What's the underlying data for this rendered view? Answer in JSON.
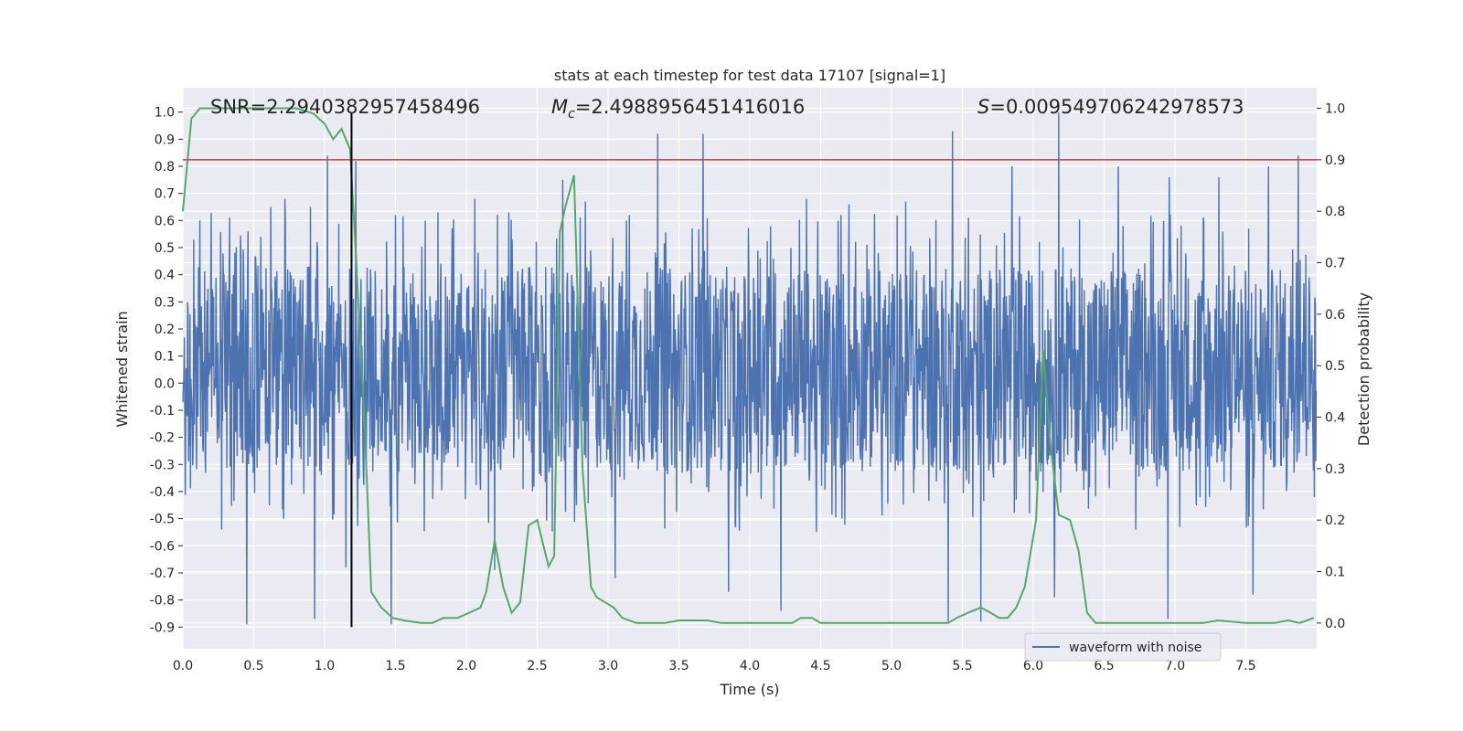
{
  "chart_data": {
    "type": "line",
    "title": "stats at each timestep for test data 17107 [signal=1]",
    "xlabel": "Time (s)",
    "ylabel": "Whitened strain",
    "ylabel_right": "Detection probability",
    "xlim": [
      0.0,
      8.0
    ],
    "ylim": [
      -0.98,
      1.09
    ],
    "ylim_right": [
      -0.05,
      1.04
    ],
    "x_ticks": [
      "0.0",
      "0.5",
      "1.0",
      "1.5",
      "2.0",
      "2.5",
      "3.0",
      "3.5",
      "4.0",
      "4.5",
      "5.0",
      "5.5",
      "6.0",
      "6.5",
      "7.0",
      "7.5"
    ],
    "y_ticks": [
      "1.0",
      "0.9",
      "0.8",
      "0.7",
      "0.6",
      "0.5",
      "0.4",
      "0.3",
      "0.2",
      "0.1",
      "0.0",
      "-0.1",
      "-0.2",
      "-0.3",
      "-0.4",
      "-0.5",
      "-0.6",
      "-0.7",
      "-0.8",
      "-0.9"
    ],
    "y_ticks_right": [
      "1.0",
      "0.9",
      "0.8",
      "0.7",
      "0.6",
      "0.5",
      "0.4",
      "0.3",
      "0.2",
      "0.1",
      "0.0"
    ],
    "grid": true,
    "legend": {
      "position": "lower-right",
      "entries": [
        "waveform with noise"
      ]
    },
    "annotations": {
      "snr": "SNR=2.2940382957458496",
      "mc_symbol": "M",
      "mc_sub": "c",
      "mc_value": "=2.4988956451416016",
      "s_symbol": "S",
      "s_value": "=0.009549706242978573"
    },
    "threshold": {
      "axis": "right",
      "value": 0.9,
      "color": "#c44e52"
    },
    "vertical_marker": {
      "x": 1.19,
      "y_from": -0.9,
      "y_to": 1.0,
      "color": "#000000"
    },
    "series": [
      {
        "name": "waveform with noise",
        "axis": "left",
        "color": "#4c72b0",
        "envelope_band": [
          -0.33,
          0.43
        ],
        "spikes_up": [
          [
            0.46,
            0.56
          ],
          [
            0.62,
            0.65
          ],
          [
            0.72,
            0.68
          ],
          [
            0.9,
            0.65
          ],
          [
            1.02,
            0.84
          ],
          [
            1.22,
            0.82
          ],
          [
            1.5,
            0.62
          ],
          [
            1.8,
            0.63
          ],
          [
            2.06,
            0.68
          ],
          [
            2.3,
            0.63
          ],
          [
            2.68,
            0.75
          ],
          [
            2.84,
            0.67
          ],
          [
            3.13,
            0.6
          ],
          [
            3.35,
            0.92
          ],
          [
            3.67,
            0.92
          ],
          [
            4.4,
            0.68
          ],
          [
            4.7,
            0.66
          ],
          [
            5.1,
            0.67
          ],
          [
            5.43,
            0.93
          ],
          [
            5.85,
            0.8
          ],
          [
            6.18,
            1.0
          ],
          [
            6.6,
            0.8
          ],
          [
            6.96,
            0.76
          ],
          [
            7.31,
            0.76
          ],
          [
            7.66,
            0.8
          ],
          [
            7.87,
            0.84
          ]
        ],
        "spikes_down": [
          [
            0.45,
            -0.89
          ],
          [
            0.93,
            -0.87
          ],
          [
            1.15,
            -0.68
          ],
          [
            1.47,
            -0.89
          ],
          [
            2.2,
            -0.69
          ],
          [
            3.05,
            -0.72
          ],
          [
            3.85,
            -0.77
          ],
          [
            4.22,
            -0.84
          ],
          [
            5.4,
            -0.88
          ],
          [
            5.63,
            -0.88
          ],
          [
            6.15,
            -0.79
          ],
          [
            6.95,
            -0.87
          ],
          [
            7.55,
            -0.78
          ]
        ]
      },
      {
        "name": "",
        "axis": "right",
        "color": "#55a868",
        "x": [
          0.0,
          0.06,
          0.12,
          0.2,
          0.4,
          0.6,
          0.8,
          0.92,
          1.0,
          1.06,
          1.12,
          1.18,
          1.22,
          1.28,
          1.33,
          1.4,
          1.48,
          1.56,
          1.68,
          1.76,
          1.84,
          1.94,
          2.02,
          2.1,
          2.14,
          2.2,
          2.26,
          2.32,
          2.38,
          2.44,
          2.5,
          2.58,
          2.62,
          2.66,
          2.7,
          2.76,
          2.82,
          2.88,
          2.92,
          2.98,
          3.04,
          3.1,
          3.2,
          3.4,
          3.5,
          3.62,
          3.7,
          3.8,
          3.9,
          4.0,
          4.1,
          4.2,
          4.3,
          4.36,
          4.44,
          4.5,
          4.6,
          4.7,
          4.8,
          4.9,
          5.0,
          5.1,
          5.2,
          5.3,
          5.4,
          5.46,
          5.54,
          5.63,
          5.7,
          5.76,
          5.82,
          5.88,
          5.94,
          6.02,
          6.07,
          6.12,
          6.18,
          6.26,
          6.32,
          6.38,
          6.44,
          6.5,
          6.6,
          6.8,
          7.0,
          7.2,
          7.3,
          7.5,
          7.7,
          7.8,
          7.88,
          7.98
        ],
        "y": [
          0.8,
          0.98,
          1.0,
          1.0,
          1.0,
          1.0,
          1.0,
          0.99,
          0.97,
          0.94,
          0.96,
          0.92,
          0.72,
          0.4,
          0.06,
          0.03,
          0.01,
          0.005,
          0.0,
          0.0,
          0.01,
          0.01,
          0.02,
          0.03,
          0.06,
          0.16,
          0.07,
          0.02,
          0.04,
          0.19,
          0.2,
          0.11,
          0.13,
          0.76,
          0.81,
          0.87,
          0.3,
          0.07,
          0.05,
          0.04,
          0.03,
          0.01,
          0.0,
          0.0,
          0.005,
          0.005,
          0.005,
          0.0,
          0.0,
          0.0,
          0.0,
          0.0,
          0.0,
          0.01,
          0.01,
          0.0,
          0.0,
          0.0,
          0.0,
          0.0,
          0.0,
          0.0,
          0.0,
          0.0,
          0.0,
          0.01,
          0.02,
          0.03,
          0.02,
          0.01,
          0.01,
          0.03,
          0.07,
          0.2,
          0.53,
          0.35,
          0.21,
          0.2,
          0.14,
          0.02,
          0.0,
          0.0,
          0.0,
          0.0,
          0.0,
          0.0,
          0.005,
          0.0,
          0.0,
          0.005,
          0.0,
          0.01
        ]
      }
    ]
  }
}
